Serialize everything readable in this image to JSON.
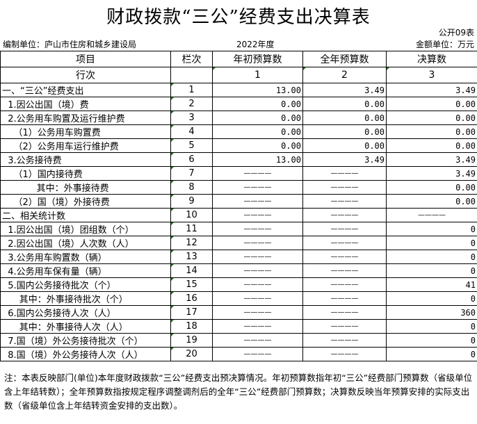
{
  "title": "财政拨款“三公”经费支出决算表",
  "table_code": "公开09表",
  "unit_label": "编制单位：庐山市住房和城乡建设局",
  "year": "2022年度",
  "currency": "金额单位：万元",
  "headers": [
    "项目",
    "栏次",
    "年初预算数",
    "全年预算数",
    "决算数"
  ],
  "index_row": [
    "行次",
    "",
    "1",
    "2",
    "3"
  ],
  "rows": [
    [
      "一、“三公”经费支出",
      "1",
      "13.00",
      "3.49",
      "3.49"
    ],
    [
      "  1.因公出国（境）费",
      "2",
      "0.00",
      "0.00",
      "0.00"
    ],
    [
      "  2.公务用车购置及运行维护费",
      "3",
      "0.00",
      "0.00",
      "0.00"
    ],
    [
      "    （1）公务用车购置费",
      "4",
      "0.00",
      "0.00",
      "0.00"
    ],
    [
      "    （2）公务用车运行维护费",
      "5",
      "0.00",
      "0.00",
      "0.00"
    ],
    [
      "  3.公务接待费",
      "6",
      "13.00",
      "3.49",
      "3.49"
    ],
    [
      "    （1）国内接待费",
      "7",
      "————",
      "————",
      "3.49"
    ],
    [
      "            其中：外事接待费",
      "8",
      "————",
      "————",
      "0.00"
    ],
    [
      "    （2）国（境）外接待费",
      "9",
      "————",
      "————",
      "0.00"
    ],
    [
      "二、相关统计数",
      "10",
      "————",
      "————",
      "————"
    ],
    [
      "  1.因公出国（境）团组数（个）",
      "11",
      "————",
      "————",
      "0"
    ],
    [
      "  2.因公出国（境）人次数（人）",
      "12",
      "————",
      "————",
      "0"
    ],
    [
      "  3.公务用车购置数（辆）",
      "13",
      "————",
      "————",
      "0"
    ],
    [
      "  4.公务用车保有量（辆）",
      "14",
      "————",
      "————",
      "0"
    ],
    [
      "  5.国内公务接待批次（个）",
      "15",
      "————",
      "————",
      "41"
    ],
    [
      "      其中：外事接待批次（个）",
      "16",
      "————",
      "————",
      "0"
    ],
    [
      "  6.国内公务接待人次（人）",
      "17",
      "————",
      "————",
      "360"
    ],
    [
      "      其中：外事接待人次（人）",
      "18",
      "————",
      "————",
      "0"
    ],
    [
      "  7.国（境）外公务接待批次（个）",
      "19",
      "————",
      "————",
      "0"
    ],
    [
      "  8.国（境）外公务接待人次（人）",
      "20",
      "————",
      "————",
      "0"
    ]
  ],
  "note": "注：本表反映部门(单位)本年度财政拨款“三公”经费支出预决算情况。年初预算数指年初“三公”经费部门预算数（省级单位含上年结转数）；全年预算数指按规定程序调整调剂后的全年“三公”经费部门预算数；决算数反映当年预算安排的实际支出数（省级单位含上年结转资金安排的支出数）。"
}
